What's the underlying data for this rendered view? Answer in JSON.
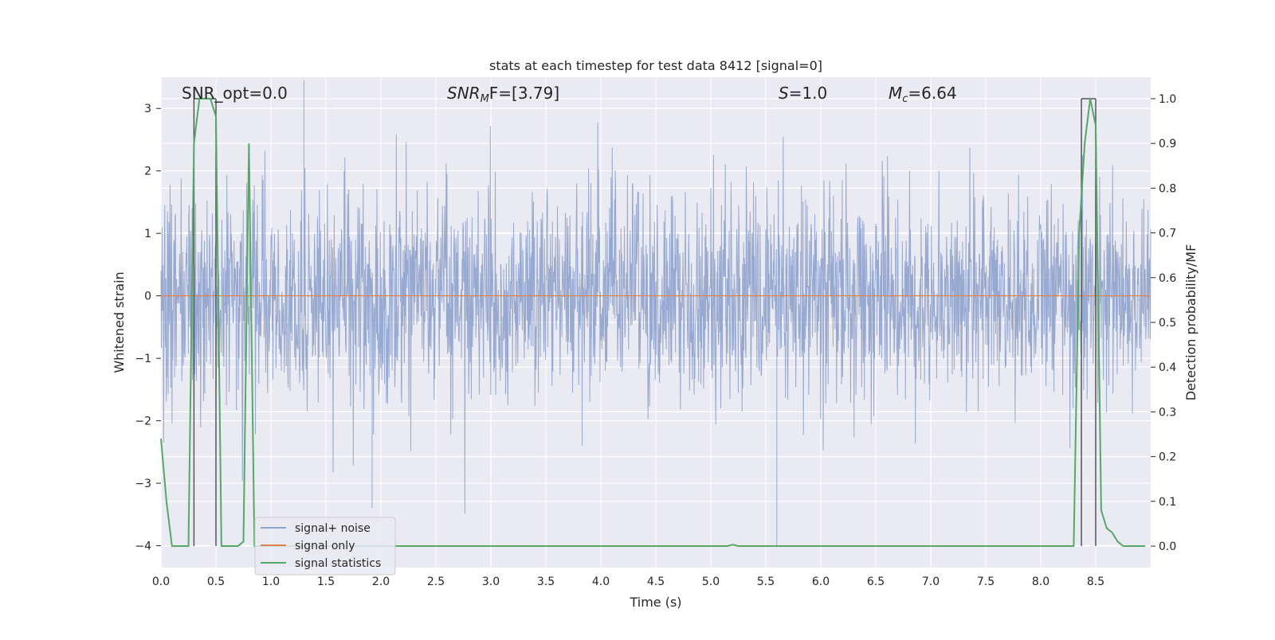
{
  "chart_data": {
    "type": "line",
    "title": "stats at each timestep for test data 8412 [signal=0]",
    "xlabel": "Time (s)",
    "ylabel": "Whitened strain",
    "y2label": "Detection probability/MF",
    "xlim": [
      0.0,
      9.0
    ],
    "ylim": [
      -4.35,
      3.5
    ],
    "y2lim": [
      -0.048,
      1.048
    ],
    "xticks": [
      "0.0",
      "0.5",
      "1.0",
      "1.5",
      "2.0",
      "2.5",
      "3.0",
      "3.5",
      "4.0",
      "4.5",
      "5.0",
      "5.5",
      "6.0",
      "6.5",
      "7.0",
      "7.5",
      "8.0",
      "8.5"
    ],
    "yticks": [
      "3",
      "2",
      "1",
      "0",
      "−1",
      "−2",
      "−3",
      "−4"
    ],
    "y2ticks": [
      "1.0",
      "0.9",
      "0.8",
      "0.7",
      "0.6",
      "0.5",
      "0.4",
      "0.3",
      "0.2",
      "0.1",
      "0.0"
    ],
    "grid": true,
    "legend_placement": "lower-left",
    "annotations": {
      "snr_opt": "SNR_opt=0.0",
      "snr_mf_base": "SNR",
      "snr_mf_sub": "M",
      "snr_mf_tail": "F=[3.79]",
      "s_var": "S",
      "s_tail": "=1.0",
      "mc_base": "M",
      "mc_sub": "c",
      "mc_tail": "=6.64"
    },
    "series": [
      {
        "name": "signal+ noise",
        "color": "#8ea2cc",
        "description_values": {
          "x_range": [
            0.0,
            9.0
          ],
          "typical_amplitude": [
            -1.8,
            1.8
          ],
          "peak_max": 3.45,
          "peak_min": -4.0
        }
      },
      {
        "name": "signal only",
        "color": "#dd8452",
        "x": [
          0.0,
          9.0
        ],
        "y": [
          0.0,
          0.0
        ]
      },
      {
        "name": "signal statistics",
        "color": "#55a868",
        "axis": "right",
        "x": [
          0.0,
          0.05,
          0.1,
          0.15,
          0.2,
          0.25,
          0.3,
          0.35,
          0.4,
          0.45,
          0.5,
          0.55,
          0.6,
          0.65,
          0.7,
          0.75,
          0.8,
          0.85,
          0.9,
          1.0,
          1.5,
          2.0,
          3.0,
          4.0,
          5.0,
          5.15,
          5.2,
          5.25,
          5.5,
          6.0,
          7.0,
          8.0,
          8.3,
          8.35,
          8.4,
          8.45,
          8.5,
          8.55,
          8.6,
          8.65,
          8.7,
          8.75,
          8.8,
          8.85,
          8.9,
          8.95
        ],
        "y": [
          0.24,
          0.1,
          0.0,
          0.0,
          0.0,
          0.0,
          0.9,
          1.0,
          1.0,
          1.0,
          0.96,
          0.0,
          0.0,
          0.0,
          0.0,
          0.01,
          0.9,
          0.0,
          0.0,
          0.0,
          0.0,
          0.0,
          0.0,
          0.0,
          0.0,
          0.0,
          0.003,
          0.0,
          0.0,
          0.0,
          0.0,
          0.0,
          0.0,
          0.7,
          0.9,
          1.0,
          0.94,
          0.08,
          0.04,
          0.03,
          0.01,
          0.0,
          0.0,
          0.0,
          0.0,
          0.0
        ]
      }
    ],
    "vertical_markers_x": [
      0.3,
      0.5,
      8.37,
      8.5
    ],
    "marker_color": "#555555"
  }
}
